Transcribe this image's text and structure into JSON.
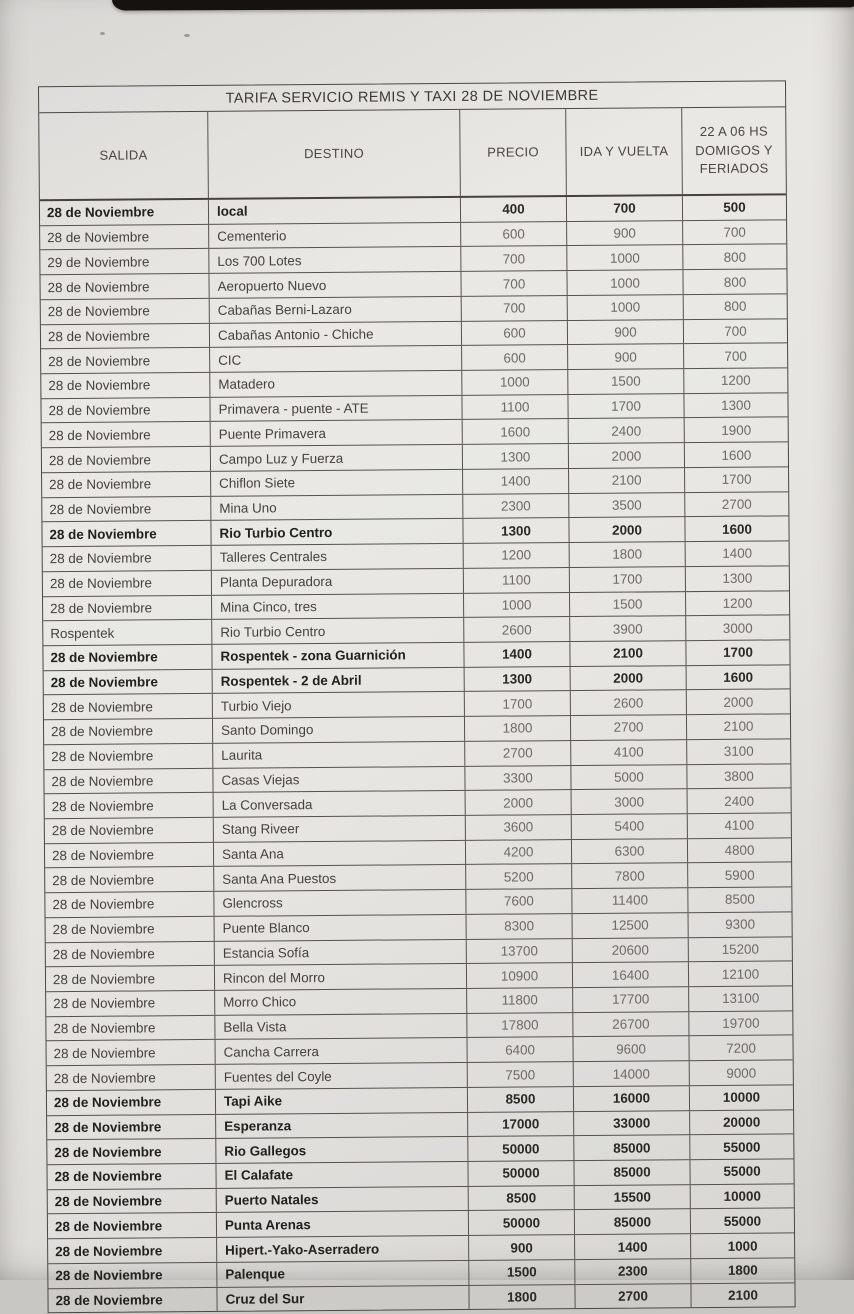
{
  "table": {
    "title": "TARIFA SERVICIO REMIS Y TAXI 28 DE NOVIEMBRE",
    "columns": {
      "salida": "SALIDA",
      "destino": "DESTINO",
      "precio": "PRECIO",
      "ida_y_vuelta": "IDA Y VUELTA",
      "nocturno": "22 A 06 HS DOMIGOS Y FERIADOS"
    },
    "rows": [
      {
        "salida": "28 de Noviembre",
        "destino": "local",
        "precio": "400",
        "ida": "700",
        "noct": "500",
        "bold": true
      },
      {
        "salida": "28 de Noviembre",
        "destino": "Cementerio",
        "precio": "600",
        "ida": "900",
        "noct": "700",
        "bold": false
      },
      {
        "salida": "29 de Noviembre",
        "destino": "Los 700 Lotes",
        "precio": "700",
        "ida": "1000",
        "noct": "800",
        "bold": false
      },
      {
        "salida": "28 de Noviembre",
        "destino": "Aeropuerto Nuevo",
        "precio": "700",
        "ida": "1000",
        "noct": "800",
        "bold": false
      },
      {
        "salida": "28 de Noviembre",
        "destino": "Cabañas Berni-Lazaro",
        "precio": "700",
        "ida": "1000",
        "noct": "800",
        "bold": false
      },
      {
        "salida": "28 de Noviembre",
        "destino": "Cabañas Antonio - Chiche",
        "precio": "600",
        "ida": "900",
        "noct": "700",
        "bold": false
      },
      {
        "salida": "28 de Noviembre",
        "destino": "CIC",
        "precio": "600",
        "ida": "900",
        "noct": "700",
        "bold": false
      },
      {
        "salida": "28 de Noviembre",
        "destino": "Matadero",
        "precio": "1000",
        "ida": "1500",
        "noct": "1200",
        "bold": false
      },
      {
        "salida": "28 de Noviembre",
        "destino": "Primavera - puente - ATE",
        "precio": "1100",
        "ida": "1700",
        "noct": "1300",
        "bold": false
      },
      {
        "salida": "28 de Noviembre",
        "destino": "Puente Primavera",
        "precio": "1600",
        "ida": "2400",
        "noct": "1900",
        "bold": false
      },
      {
        "salida": "28 de Noviembre",
        "destino": "Campo Luz y Fuerza",
        "precio": "1300",
        "ida": "2000",
        "noct": "1600",
        "bold": false
      },
      {
        "salida": "28 de Noviembre",
        "destino": "Chiflon Siete",
        "precio": "1400",
        "ida": "2100",
        "noct": "1700",
        "bold": false
      },
      {
        "salida": "28 de Noviembre",
        "destino": "Mina Uno",
        "precio": "2300",
        "ida": "3500",
        "noct": "2700",
        "bold": false
      },
      {
        "salida": "28 de Noviembre",
        "destino": "Rio Turbio Centro",
        "precio": "1300",
        "ida": "2000",
        "noct": "1600",
        "bold": true
      },
      {
        "salida": "28 de Noviembre",
        "destino": "Talleres Centrales",
        "precio": "1200",
        "ida": "1800",
        "noct": "1400",
        "bold": false
      },
      {
        "salida": "28 de Noviembre",
        "destino": "Planta Depuradora",
        "precio": "1100",
        "ida": "1700",
        "noct": "1300",
        "bold": false
      },
      {
        "salida": "28 de Noviembre",
        "destino": "Mina Cinco, tres",
        "precio": "1000",
        "ida": "1500",
        "noct": "1200",
        "bold": false
      },
      {
        "salida": "Rospentek",
        "destino": "Rio Turbio Centro",
        "precio": "2600",
        "ida": "3900",
        "noct": "3000",
        "bold": false
      },
      {
        "salida": "28 de Noviembre",
        "destino": "Rospentek - zona Guarnición",
        "precio": "1400",
        "ida": "2100",
        "noct": "1700",
        "bold": true
      },
      {
        "salida": "28 de Noviembre",
        "destino": "Rospentek - 2 de Abril",
        "precio": "1300",
        "ida": "2000",
        "noct": "1600",
        "bold": true
      },
      {
        "salida": "28 de Noviembre",
        "destino": "Turbio Viejo",
        "precio": "1700",
        "ida": "2600",
        "noct": "2000",
        "bold": false
      },
      {
        "salida": "28 de Noviembre",
        "destino": "Santo Domingo",
        "precio": "1800",
        "ida": "2700",
        "noct": "2100",
        "bold": false
      },
      {
        "salida": "28 de Noviembre",
        "destino": "Laurita",
        "precio": "2700",
        "ida": "4100",
        "noct": "3100",
        "bold": false
      },
      {
        "salida": "28 de Noviembre",
        "destino": "Casas Viejas",
        "precio": "3300",
        "ida": "5000",
        "noct": "3800",
        "bold": false
      },
      {
        "salida": "28 de Noviembre",
        "destino": "La Conversada",
        "precio": "2000",
        "ida": "3000",
        "noct": "2400",
        "bold": false
      },
      {
        "salida": "28 de Noviembre",
        "destino": "Stang Riveer",
        "precio": "3600",
        "ida": "5400",
        "noct": "4100",
        "bold": false
      },
      {
        "salida": "28 de Noviembre",
        "destino": "Santa Ana",
        "precio": "4200",
        "ida": "6300",
        "noct": "4800",
        "bold": false
      },
      {
        "salida": "28 de Noviembre",
        "destino": "Santa Ana Puestos",
        "precio": "5200",
        "ida": "7800",
        "noct": "5900",
        "bold": false
      },
      {
        "salida": "28 de Noviembre",
        "destino": "Glencross",
        "precio": "7600",
        "ida": "11400",
        "noct": "8500",
        "bold": false
      },
      {
        "salida": "28 de Noviembre",
        "destino": "Puente Blanco",
        "precio": "8300",
        "ida": "12500",
        "noct": "9300",
        "bold": false
      },
      {
        "salida": "28 de Noviembre",
        "destino": "Estancia Sofía",
        "precio": "13700",
        "ida": "20600",
        "noct": "15200",
        "bold": false
      },
      {
        "salida": "28 de Noviembre",
        "destino": "Rincon del Morro",
        "precio": "10900",
        "ida": "16400",
        "noct": "12100",
        "bold": false
      },
      {
        "salida": "28 de Noviembre",
        "destino": "Morro Chico",
        "precio": "11800",
        "ida": "17700",
        "noct": "13100",
        "bold": false
      },
      {
        "salida": "28 de Noviembre",
        "destino": "Bella Vista",
        "precio": "17800",
        "ida": "26700",
        "noct": "19700",
        "bold": false
      },
      {
        "salida": "28 de Noviembre",
        "destino": "Cancha Carrera",
        "precio": "6400",
        "ida": "9600",
        "noct": "7200",
        "bold": false
      },
      {
        "salida": "28 de Noviembre",
        "destino": "Fuentes del Coyle",
        "precio": "7500",
        "ida": "14000",
        "noct": "9000",
        "bold": false
      },
      {
        "salida": "28 de Noviembre",
        "destino": "Tapi Aike",
        "precio": "8500",
        "ida": "16000",
        "noct": "10000",
        "bold": true
      },
      {
        "salida": "28 de Noviembre",
        "destino": "Esperanza",
        "precio": "17000",
        "ida": "33000",
        "noct": "20000",
        "bold": true
      },
      {
        "salida": "28 de Noviembre",
        "destino": "Rio Gallegos",
        "precio": "50000",
        "ida": "85000",
        "noct": "55000",
        "bold": true
      },
      {
        "salida": "28 de Noviembre",
        "destino": "El Calafate",
        "precio": "50000",
        "ida": "85000",
        "noct": "55000",
        "bold": true
      },
      {
        "salida": "28 de Noviembre",
        "destino": "Puerto Natales",
        "precio": "8500",
        "ida": "15500",
        "noct": "10000",
        "bold": true
      },
      {
        "salida": "28 de Noviembre",
        "destino": "Punta Arenas",
        "precio": "50000",
        "ida": "85000",
        "noct": "55000",
        "bold": true
      },
      {
        "salida": "28 de Noviembre",
        "destino": "Hipert.-Yako-Aserradero",
        "precio": "900",
        "ida": "1400",
        "noct": "1000",
        "bold": true
      },
      {
        "salida": "28 de Noviembre",
        "destino": "Palenque",
        "precio": "1500",
        "ida": "2300",
        "noct": "1800",
        "bold": true
      },
      {
        "salida": "28 de Noviembre",
        "destino": "Cruz del Sur",
        "precio": "1800",
        "ida": "2700",
        "noct": "2100",
        "bold": true
      }
    ]
  }
}
